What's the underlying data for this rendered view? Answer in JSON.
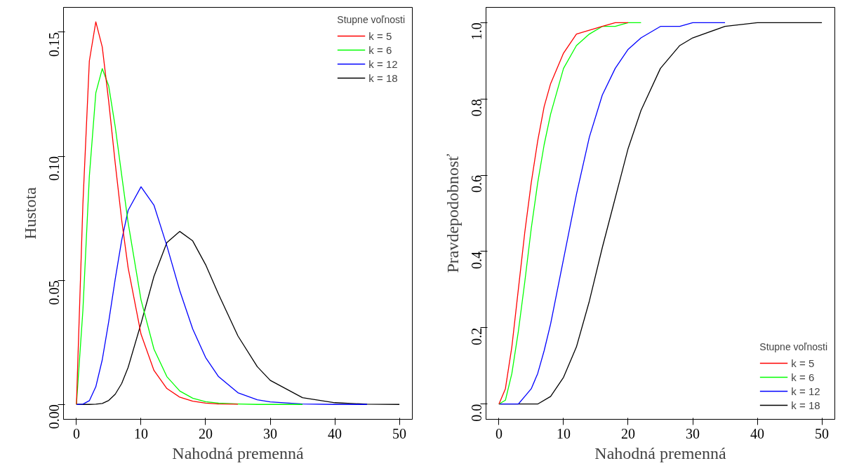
{
  "chart_data": [
    {
      "type": "line",
      "xlabel": "Nahodná premenná",
      "ylabel": "Hustota",
      "legend_title": "Stupne voľnosti",
      "legend": "top right",
      "grid": false,
      "marker": "none",
      "line_style": "solid",
      "xlim": [
        -2,
        52
      ],
      "ylim": [
        -0.006,
        0.16
      ],
      "xticks": [
        0,
        10,
        20,
        30,
        40,
        50
      ],
      "yticks": [
        {
          "value": 0,
          "label": "0.00"
        },
        {
          "value": 0.05,
          "label": "0.05"
        },
        {
          "value": 0.1,
          "label": "0.10"
        },
        {
          "value": 0.15,
          "label": "0.15"
        }
      ],
      "series": [
        {
          "name": "k = 5",
          "color": "#ff0000",
          "x": [
            0,
            1,
            2,
            3,
            4,
            5,
            6,
            7,
            8,
            10,
            12,
            14,
            16,
            18,
            20,
            22,
            25
          ],
          "values": [
            0,
            0.0807,
            0.1384,
            0.1542,
            0.144,
            0.122,
            0.0973,
            0.0744,
            0.0551,
            0.0283,
            0.0137,
            0.0064,
            0.0029,
            0.0013,
            0.0005,
            0.0002,
            0.0001
          ]
        },
        {
          "name": "k = 6",
          "color": "#00ff00",
          "x": [
            0,
            1,
            2,
            3,
            4,
            5,
            6,
            7,
            8,
            10,
            12,
            14,
            16,
            18,
            20,
            22,
            25,
            28,
            30,
            35
          ],
          "values": [
            0,
            0.0379,
            0.092,
            0.1255,
            0.1353,
            0.1283,
            0.112,
            0.0925,
            0.0733,
            0.0421,
            0.0223,
            0.0112,
            0.0054,
            0.0025,
            0.0011,
            0.0005,
            0.0002,
            0,
            0,
            0
          ]
        },
        {
          "name": "k = 12",
          "color": "#0000ff",
          "x": [
            0,
            1,
            2,
            3,
            4,
            5,
            6,
            7,
            8,
            10,
            12,
            14,
            16,
            18,
            20,
            22,
            25,
            28,
            30,
            35,
            40,
            45
          ],
          "values": [
            0,
            0.0001,
            0.0015,
            0.0071,
            0.018,
            0.0334,
            0.0504,
            0.0661,
            0.0782,
            0.0877,
            0.0803,
            0.0639,
            0.0458,
            0.0304,
            0.0189,
            0.0112,
            0.0047,
            0.0019,
            0.001,
            0.0002,
            0,
            0
          ]
        },
        {
          "name": "k = 18",
          "color": "#000000",
          "x": [
            0,
            2,
            3,
            4,
            5,
            6,
            7,
            8,
            10,
            12,
            14,
            16,
            18,
            20,
            22,
            25,
            28,
            30,
            35,
            40,
            45,
            50
          ],
          "values": [
            0,
            0,
            0.0001,
            0.0004,
            0.0016,
            0.0041,
            0.0084,
            0.0149,
            0.0326,
            0.0516,
            0.0652,
            0.0697,
            0.0659,
            0.0563,
            0.0444,
            0.0276,
            0.0152,
            0.0097,
            0.0027,
            0.0007,
            0.0001,
            0
          ]
        }
      ]
    },
    {
      "type": "line",
      "xlabel": "Nahodná premenná",
      "ylabel": "Pravdepodobnosť",
      "legend_title": "Stupne voľnosti",
      "legend": "bottom right",
      "grid": false,
      "marker": "none",
      "line_style": "solid",
      "xlim": [
        -2,
        52
      ],
      "ylim": [
        -0.04,
        1.04
      ],
      "xticks": [
        0,
        10,
        20,
        30,
        40,
        50
      ],
      "yticks": [
        {
          "value": 0,
          "label": "0.0"
        },
        {
          "value": 0.2,
          "label": "0.2"
        },
        {
          "value": 0.4,
          "label": "0.4"
        },
        {
          "value": 0.6,
          "label": "0.6"
        },
        {
          "value": 0.8,
          "label": "0.8"
        },
        {
          "value": 1,
          "label": "1.0"
        }
      ],
      "series": [
        {
          "name": "k = 5",
          "color": "#ff0000",
          "x": [
            0,
            1,
            2,
            3,
            4,
            5,
            6,
            7,
            8,
            10,
            12,
            14,
            16,
            18,
            20
          ],
          "values": [
            0,
            0.04,
            0.15,
            0.3,
            0.45,
            0.58,
            0.69,
            0.78,
            0.84,
            0.92,
            0.97,
            0.98,
            0.99,
            1,
            1
          ]
        },
        {
          "name": "k = 6",
          "color": "#00ff00",
          "x": [
            0,
            1,
            2,
            3,
            4,
            5,
            6,
            7,
            8,
            10,
            12,
            14,
            16,
            18,
            20,
            22
          ],
          "values": [
            0,
            0.01,
            0.08,
            0.19,
            0.32,
            0.46,
            0.58,
            0.68,
            0.76,
            0.88,
            0.94,
            0.97,
            0.99,
            0.99,
            1,
            1
          ]
        },
        {
          "name": "k = 12",
          "color": "#0000ff",
          "x": [
            0,
            1,
            2,
            3,
            4,
            5,
            6,
            7,
            8,
            10,
            12,
            14,
            16,
            18,
            20,
            22,
            25,
            28,
            30,
            35
          ],
          "values": [
            0,
            0,
            0,
            0,
            0.02,
            0.04,
            0.08,
            0.14,
            0.21,
            0.38,
            0.55,
            0.7,
            0.81,
            0.88,
            0.93,
            0.96,
            0.99,
            0.99,
            1,
            1
          ]
        },
        {
          "name": "k = 18",
          "color": "#000000",
          "x": [
            0,
            2,
            4,
            6,
            8,
            10,
            12,
            14,
            16,
            18,
            20,
            22,
            25,
            28,
            30,
            35,
            40,
            45,
            50
          ],
          "values": [
            0,
            0,
            0,
            0,
            0.02,
            0.07,
            0.15,
            0.27,
            0.41,
            0.54,
            0.67,
            0.77,
            0.88,
            0.94,
            0.96,
            0.99,
            1,
            1,
            1
          ]
        }
      ]
    }
  ]
}
